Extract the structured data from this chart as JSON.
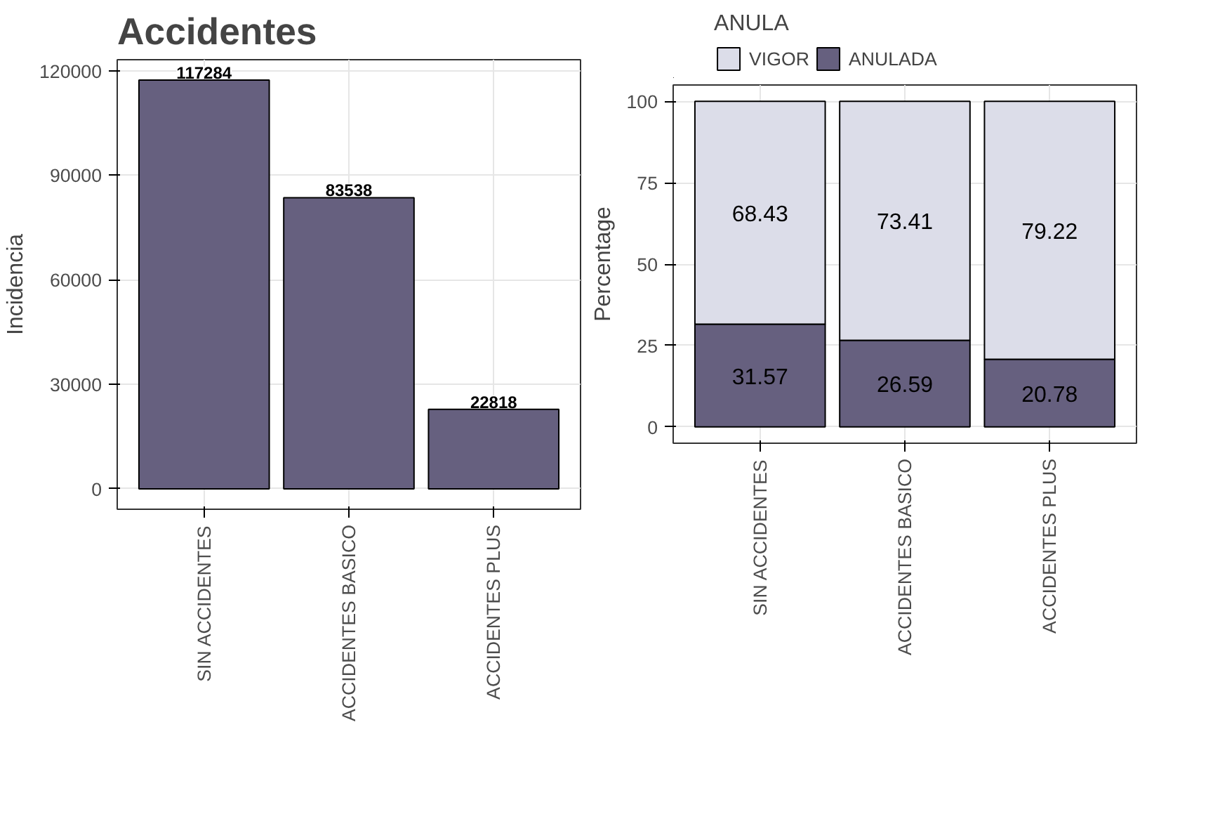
{
  "chart_data": [
    {
      "type": "bar",
      "title": "Accidentes",
      "ylabel": "Incidencia",
      "categories": [
        "SIN ACCIDENTES",
        "ACCIDENTES BASICO",
        "ACCIDENTES PLUS"
      ],
      "values": [
        117284,
        83538,
        22818
      ],
      "color": "#66607f",
      "ylim": [
        -5864,
        123148
      ],
      "yticks": [
        0,
        30000,
        60000,
        90000,
        120000
      ],
      "grid": true,
      "data_labels": true
    },
    {
      "type": "bar",
      "stacked": true,
      "ylabel": "Percentage",
      "legend_title": "ANULA",
      "legend": "top",
      "categories": [
        "SIN ACCIDENTES",
        "ACCIDENTES BASICO",
        "ACCIDENTES PLUS"
      ],
      "series": [
        {
          "name": "ANULADA",
          "color": "#66607f",
          "values": [
            31.57,
            26.59,
            20.78
          ]
        },
        {
          "name": "VIGOR",
          "color": "#dcdde9",
          "values": [
            68.43,
            73.41,
            79.22
          ]
        }
      ],
      "ylim": [
        -5,
        105
      ],
      "yticks": [
        0,
        25,
        50,
        75,
        100
      ],
      "grid": true,
      "data_labels": true
    }
  ]
}
